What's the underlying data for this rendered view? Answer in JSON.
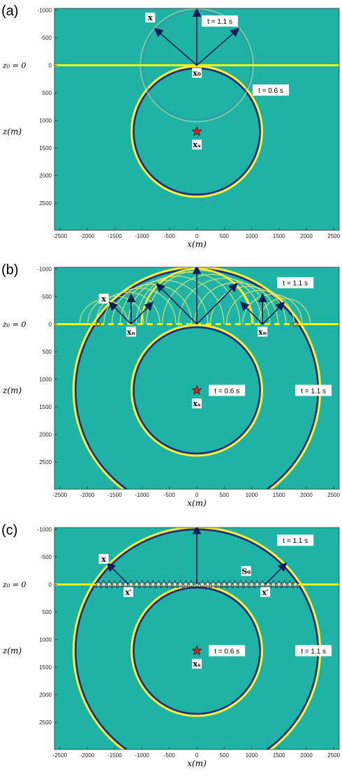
{
  "panels": [
    {
      "letter": "(a)",
      "z0_label": "z₀ = 0",
      "z_axis_label": "z(m)",
      "x_axis_label": "x(m)",
      "x_ticks": [
        "-2500",
        "-2000",
        "-1500",
        "-1000",
        "-500",
        "0",
        "500",
        "1000",
        "1500",
        "2000",
        "2500"
      ],
      "y_ticks": [
        "-1000",
        "-500",
        "0",
        "500",
        "1000",
        "1500",
        "2000",
        "2500"
      ],
      "labels": [
        {
          "text": "t = 1.1 s",
          "x": 420,
          "z": -800,
          "w": 90
        },
        {
          "text": "t = 0.6 s",
          "x": 1350,
          "z": 450,
          "w": 90
        }
      ],
      "point_labels": [
        {
          "text": "x",
          "x": -850,
          "z": -850
        },
        {
          "text": "x₀",
          "x": 0,
          "z": 150
        },
        {
          "text": "xₛ",
          "x": 0,
          "z": 1450
        }
      ]
    },
    {
      "letter": "(b)",
      "z0_label": "z₀ = 0",
      "z_axis_label": "z(m)",
      "x_axis_label": "x(m)",
      "x_ticks": [
        "-2500",
        "-2000",
        "-1500",
        "-1000",
        "-500",
        "0",
        "500",
        "1000",
        "1500",
        "2000",
        "2500"
      ],
      "y_ticks": [
        "-1000",
        "-500",
        "0",
        "500",
        "1000",
        "1500",
        "2000",
        "2500"
      ],
      "labels": [
        {
          "text": "t = 1.1 s",
          "x": 1800,
          "z": -750,
          "w": 90
        },
        {
          "text": "t = 0.6 s",
          "x": 550,
          "z": 1200,
          "w": 90
        },
        {
          "text": "t = 1.1 s",
          "x": 2130,
          "z": 1200,
          "w": 90
        }
      ],
      "point_labels": [
        {
          "text": "x",
          "x": -1700,
          "z": -450
        },
        {
          "text": "xₙ",
          "x": -1200,
          "z": 150
        },
        {
          "text": "xₙ",
          "x": 1200,
          "z": 150
        },
        {
          "text": "xₛ",
          "x": 0,
          "z": 1450
        }
      ]
    },
    {
      "letter": "(c)",
      "z0_label": "z₀ = 0",
      "z_axis_label": "z(m)",
      "x_axis_label": "x(m)",
      "x_ticks": [
        "-2500",
        "-2000",
        "-1500",
        "-1000",
        "-500",
        "0",
        "500",
        "1000",
        "1500",
        "2000",
        "2500"
      ],
      "y_ticks": [
        "-1000",
        "-500",
        "0",
        "500",
        "1000",
        "1500",
        "2000",
        "2500"
      ],
      "labels": [
        {
          "text": "t = 1.1 s",
          "x": 1800,
          "z": -800,
          "w": 90
        },
        {
          "text": "t = 0.6 s",
          "x": 550,
          "z": 1200,
          "w": 90
        },
        {
          "text": "t = 1.1 s",
          "x": 2130,
          "z": 1200,
          "w": 90
        }
      ],
      "point_labels": [
        {
          "text": "x",
          "x": -1700,
          "z": -450
        },
        {
          "text": "S₀",
          "x": 900,
          "z": -230
        },
        {
          "text": "x′",
          "x": -1250,
          "z": 150
        },
        {
          "text": "x′",
          "x": 1250,
          "z": 150
        },
        {
          "text": "xₛ",
          "x": 0,
          "z": 1450
        }
      ]
    }
  ],
  "colors": {
    "background": "#1fb3a6",
    "wave_yellow": "#ffee33",
    "wave_dark": "#2a2a7a",
    "surface_line": "#f3f300",
    "arrow": "#0f1f55",
    "source_star": "#e02020"
  }
}
